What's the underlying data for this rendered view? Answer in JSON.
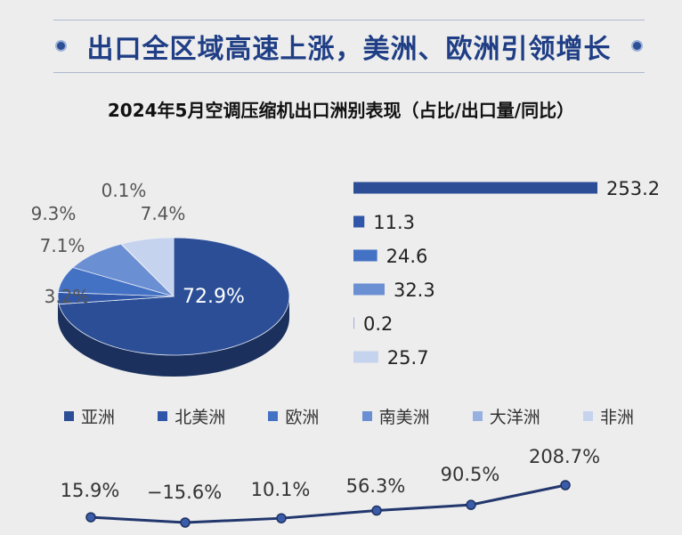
{
  "banner": {
    "title": "出口全区域高速上涨，美洲、欧洲引领增长"
  },
  "subtitle": "2024年5月空调压缩机出口洲别表现（占比/出口量/同比）",
  "colors": [
    "#2b4e96",
    "#2f56a8",
    "#4371c4",
    "#6b8fd3",
    "#96b0e0",
    "#c5d3ee"
  ],
  "chart_data": [
    {
      "type": "pie",
      "title": "",
      "categories": [
        "亚洲",
        "北美洲",
        "欧洲",
        "南美洲",
        "大洋洲",
        "非洲"
      ],
      "values": [
        72.9,
        3.2,
        7.1,
        9.3,
        0.1,
        7.4
      ],
      "labels": [
        "72.9%",
        "3.2%",
        "7.1%",
        "9.3%",
        "0.1%",
        "7.4%"
      ]
    },
    {
      "type": "bar",
      "title": "",
      "categories": [
        "亚洲",
        "北美洲",
        "欧洲",
        "南美洲",
        "大洋洲",
        "非洲"
      ],
      "values": [
        253.2,
        11.3,
        24.6,
        32.3,
        0.2,
        25.7
      ],
      "labels": [
        "253.2",
        "11.3",
        "24.6",
        "32.3",
        "0.2",
        "25.7"
      ],
      "orientation": "horizontal"
    },
    {
      "type": "line",
      "title": "",
      "categories": [
        "亚洲",
        "北美洲",
        "欧洲",
        "南美洲",
        "大洋洲",
        "非洲"
      ],
      "values": [
        15.9,
        -15.6,
        10.1,
        56.3,
        90.5,
        208.7
      ],
      "labels": [
        "15.9%",
        "−15.6%",
        "10.1%",
        "56.3%",
        "90.5%",
        "208.7%"
      ]
    }
  ],
  "legend": {
    "items": [
      "亚洲",
      "北美洲",
      "欧洲",
      "南美洲",
      "大洋洲",
      "非洲"
    ],
    "placement": "bottom"
  }
}
